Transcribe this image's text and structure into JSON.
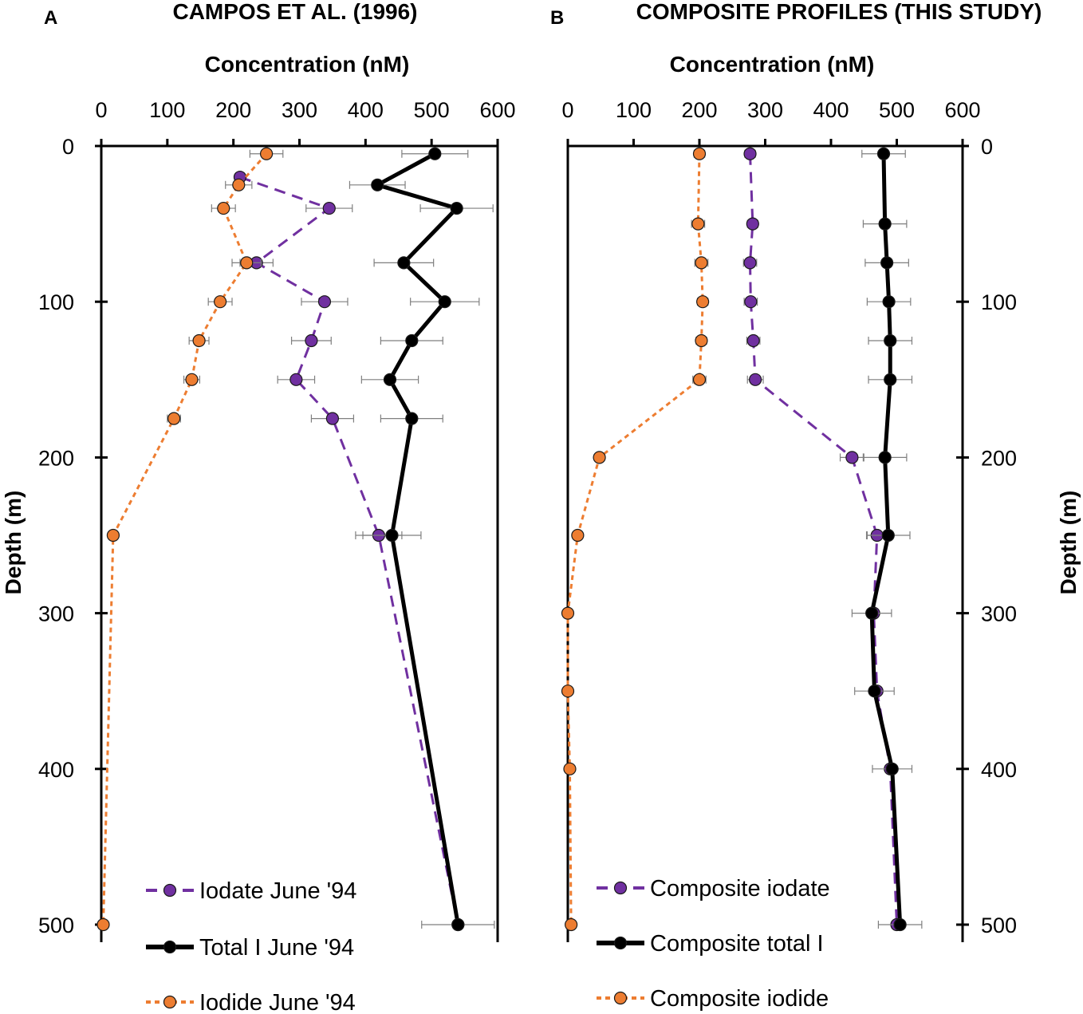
{
  "colors": {
    "iodate": "#7030a0",
    "total": "#000000",
    "iodide": "#ed7d31",
    "axis": "#000000",
    "errorbar": "#7f7f7f"
  },
  "chart_data": [
    {
      "type": "line",
      "panel_label": "A",
      "title": "CAMPOS ET AL. (1996)",
      "xlabel": "Concentration (nM)",
      "ylabel": "Depth (m)",
      "xlim": [
        0,
        600
      ],
      "ylim": [
        500,
        0
      ],
      "xticks": [
        "0",
        "100",
        "200",
        "300",
        "400",
        "500",
        "600"
      ],
      "yticks": [
        "0",
        "100",
        "200",
        "300",
        "400",
        "500"
      ],
      "series": [
        {
          "name": "Iodate June '94",
          "key": "iodate",
          "dash": "dashed",
          "depth": [
            20,
            40,
            75,
            100,
            125,
            150,
            175,
            250,
            500
          ],
          "values": [
            210,
            345,
            235,
            338,
            318,
            295,
            350,
            420,
            540
          ],
          "error": [
            0,
            35,
            25,
            35,
            30,
            28,
            32,
            35,
            0
          ]
        },
        {
          "name": "Total I June '94",
          "key": "total",
          "dash": "solid",
          "depth": [
            5,
            25,
            40,
            75,
            100,
            125,
            150,
            175,
            250,
            500
          ],
          "values": [
            505,
            418,
            538,
            458,
            520,
            470,
            437,
            470,
            440,
            540
          ],
          "error": [
            50,
            42,
            55,
            45,
            52,
            47,
            43,
            47,
            44,
            55
          ]
        },
        {
          "name": "Iodide June '94",
          "key": "iodide",
          "dash": "dotted",
          "depth": [
            5,
            25,
            40,
            75,
            100,
            125,
            150,
            175,
            250,
            500
          ],
          "values": [
            250,
            208,
            185,
            220,
            180,
            148,
            137,
            110,
            18,
            3
          ],
          "error": [
            25,
            20,
            18,
            22,
            18,
            15,
            12,
            10,
            0,
            0
          ]
        }
      ]
    },
    {
      "type": "line",
      "panel_label": "B",
      "title": "COMPOSITE PROFILES (THIS STUDY)",
      "xlabel": "Concentration (nM)",
      "ylabel": "Depth (m)",
      "xlim": [
        0,
        600
      ],
      "ylim": [
        500,
        0
      ],
      "xticks": [
        "0",
        "100",
        "200",
        "300",
        "400",
        "500",
        "600"
      ],
      "yticks": [
        "0",
        "100",
        "200",
        "300",
        "400",
        "500"
      ],
      "series": [
        {
          "name": "Composite iodate",
          "key": "iodate",
          "dash": "dashed",
          "depth": [
            5,
            50,
            75,
            100,
            125,
            150,
            200,
            250,
            300,
            350,
            400,
            500
          ],
          "values": [
            277,
            281,
            277,
            278,
            282,
            285,
            432,
            470,
            465,
            470,
            490,
            500
          ],
          "error": [
            8,
            8,
            10,
            10,
            10,
            12,
            18,
            15,
            0,
            0,
            0,
            0
          ]
        },
        {
          "name": "Composite total I",
          "key": "total",
          "dash": "solid",
          "depth": [
            5,
            50,
            75,
            100,
            125,
            150,
            200,
            250,
            300,
            350,
            400,
            500
          ],
          "values": [
            480,
            482,
            485,
            488,
            490,
            490,
            482,
            487,
            462,
            466,
            493,
            505
          ],
          "error": [
            33,
            33,
            33,
            33,
            33,
            33,
            33,
            33,
            30,
            30,
            30,
            33
          ]
        },
        {
          "name": "Composite iodide",
          "key": "iodide",
          "dash": "dotted",
          "depth": [
            5,
            50,
            75,
            100,
            125,
            150,
            200,
            250,
            300,
            350,
            400,
            500
          ],
          "values": [
            200,
            198,
            203,
            205,
            203,
            200,
            48,
            15,
            0,
            0,
            3,
            5
          ],
          "error": [
            8,
            10,
            10,
            8,
            8,
            10,
            0,
            0,
            0,
            0,
            0,
            0
          ]
        }
      ]
    }
  ]
}
